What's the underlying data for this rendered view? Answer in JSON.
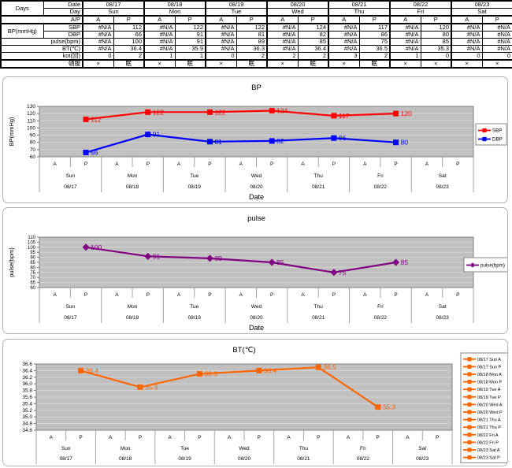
{
  "table": {
    "corner_label": "Days",
    "row_labels": {
      "date": "Date",
      "day": "Day",
      "ap": "A/P",
      "bp_group": "BP(mmHg)",
      "sbp": "SBP",
      "dbp": "DBP",
      "pulse": "pulse(bpm)",
      "bt": "BT(℃)",
      "kot": "kot(回)",
      "tonpuku": "頓服"
    },
    "ap_slots": [
      "A",
      "P"
    ],
    "dates": [
      "08/17",
      "08/18",
      "08/19",
      "08/20",
      "08/21",
      "08/22",
      "08/23"
    ],
    "day_names": [
      "Sun",
      "Mon",
      "Tue",
      "Wed",
      "Thu",
      "Fri",
      "Sat"
    ],
    "values": {
      "sbp": [
        "#N/A",
        "112",
        "#N/A",
        "122",
        "#N/A",
        "122",
        "#N/A",
        "124",
        "#N/A",
        "117",
        "#N/A",
        "120",
        "#N/A",
        "#N/A"
      ],
      "dbp": [
        "#N/A",
        "66",
        "#N/A",
        "91",
        "#N/A",
        "81",
        "#N/A",
        "82",
        "#N/A",
        "86",
        "#N/A",
        "80",
        "#N/A",
        "#N/A"
      ],
      "pulse": [
        "#N/A",
        "100",
        "#N/A",
        "91",
        "#N/A",
        "89",
        "#N/A",
        "85",
        "#N/A",
        "75",
        "#N/A",
        "85",
        "#N/A",
        "#N/A"
      ],
      "bt": [
        "#N/A",
        "36.4",
        "#N/A",
        "35.9",
        "#N/A",
        "36.3",
        "#N/A",
        "36.4",
        "#N/A",
        "36.5",
        "#N/A",
        "35.3",
        "#N/A",
        "#N/A"
      ],
      "kot": [
        "0",
        "2",
        "1",
        "1",
        "0",
        "2",
        "2",
        "2",
        "3",
        "2",
        "1",
        "0",
        "0",
        "0"
      ],
      "tonpuku": [
        "×",
        "眠",
        "×",
        "眠",
        "×",
        "眠",
        "×",
        "眠",
        "×",
        "眠",
        "×",
        "×",
        "×",
        "×"
      ]
    }
  },
  "chart_data": [
    {
      "type": "line",
      "title": "BP",
      "ylabel": "BP(mmHg)",
      "xlabel": "Date",
      "ylim": [
        60,
        130
      ],
      "ystep": 10,
      "y_decimals": 0,
      "grid": true,
      "plot_bg": "#c0c0c0",
      "legend_position": "right",
      "x_slots": [
        "A",
        "P"
      ],
      "x_days": [
        "Sun",
        "Mon",
        "Tue",
        "Wed",
        "Thu",
        "Fri",
        "Sat"
      ],
      "x_dates": [
        "08/17",
        "08/18",
        "08/19",
        "08/20",
        "08/21",
        "08/22",
        "08/23"
      ],
      "series": [
        {
          "name": "SBP",
          "color": "#ff0000",
          "marker": "square",
          "days": [
            0,
            1,
            2,
            3,
            4,
            5
          ],
          "slot": "P",
          "values": [
            112,
            122,
            122,
            124,
            117,
            120
          ]
        },
        {
          "name": "DBP",
          "color": "#0000ff",
          "marker": "square",
          "days": [
            0,
            1,
            2,
            3,
            4,
            5
          ],
          "slot": "P",
          "values": [
            66,
            91,
            81,
            82,
            86,
            80
          ]
        }
      ]
    },
    {
      "type": "line",
      "title": "pulse",
      "ylabel": "pulse(bpm)",
      "xlabel": "Date",
      "ylim": [
        60,
        110
      ],
      "ystep": 5,
      "y_decimals": 0,
      "grid": true,
      "plot_bg": "#c0c0c0",
      "legend_position": "right",
      "x_slots": [
        "A",
        "P"
      ],
      "x_days": [
        "Sun",
        "Mon",
        "Tue",
        "Wed",
        "Thu",
        "Fri",
        "Sat"
      ],
      "x_dates": [
        "08/17",
        "08/18",
        "08/19",
        "08/20",
        "08/21",
        "08/22",
        "08/23"
      ],
      "series": [
        {
          "name": "pulse(bpm)",
          "color": "#800080",
          "marker": "diamond",
          "days": [
            0,
            1,
            2,
            3,
            4,
            5
          ],
          "slot": "P",
          "values": [
            100,
            91,
            89,
            85,
            75,
            85
          ]
        }
      ]
    },
    {
      "type": "line",
      "title": "BT(℃)",
      "ylabel": "",
      "xlabel": "",
      "ylim": [
        34.6,
        36.6
      ],
      "ystep": 0.2,
      "y_decimals": 1,
      "grid": true,
      "plot_bg": "#c0c0c0",
      "legend_position": "right",
      "x_slots": [
        "A",
        "P"
      ],
      "x_days": [
        "Sun",
        "Mon",
        "Tue",
        "Wed",
        "Thu",
        "Fri",
        "Sat"
      ],
      "x_dates": [
        "08/17",
        "08/18",
        "08/19",
        "08/20",
        "08/21",
        "08/22",
        "08/23"
      ],
      "series": [
        {
          "name": "BT",
          "color": "#ff6600",
          "marker": "square",
          "days": [
            0,
            1,
            2,
            3,
            4,
            5
          ],
          "slot": "P",
          "values": [
            36.4,
            35.9,
            36.3,
            36.4,
            36.5,
            35.3
          ]
        }
      ],
      "legend_entries": [
        "08/17 Sun A",
        "08/17 Sun P",
        "08/18 Mon A",
        "08/18 Mon P",
        "08/19 Tue A",
        "08/19 Tue P",
        "08/20 Wed A",
        "08/20 Wed P",
        "08/21 Thu A",
        "08/21 Thu P",
        "08/22 Fri A",
        "08/22 Fri P",
        "08/23 Sat A",
        "08/23 Sat P"
      ]
    }
  ]
}
